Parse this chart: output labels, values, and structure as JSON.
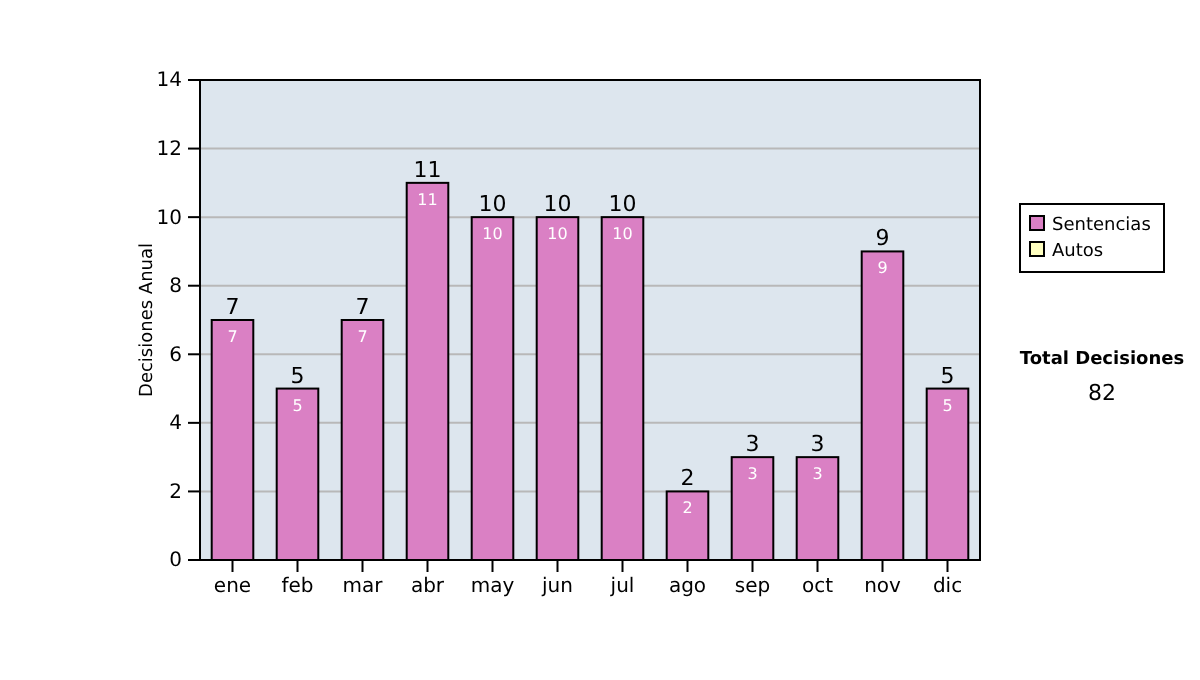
{
  "chart_data": {
    "type": "bar",
    "ylabel": "Decisiones Anual",
    "categories": [
      "ene",
      "feb",
      "mar",
      "abr",
      "may",
      "jun",
      "jul",
      "ago",
      "sep",
      "oct",
      "nov",
      "dic"
    ],
    "series": [
      {
        "name": "Sentencias",
        "color": "#da80c4",
        "values": [
          7,
          5,
          7,
          11,
          10,
          10,
          10,
          2,
          3,
          3,
          9,
          5
        ],
        "value_labels": [
          "7",
          "5",
          "7",
          "11",
          "10",
          "10",
          "10",
          "2",
          "3",
          "3",
          "9",
          "5"
        ]
      },
      {
        "name": "Autos",
        "color": "#ffffc0",
        "values": [
          0,
          0,
          0,
          0,
          0,
          0,
          0,
          0,
          0,
          0,
          0,
          0
        ],
        "value_labels": [
          null,
          null,
          null,
          null,
          null,
          null,
          null,
          null,
          null,
          null,
          null,
          null
        ]
      }
    ],
    "stacked": true,
    "totals": [
      "7",
      "5",
      "7",
      "11",
      "10",
      "10",
      "10",
      "2",
      "3",
      "3",
      "9",
      "5"
    ],
    "ylim": [
      0,
      14
    ],
    "yticks": [
      0,
      2,
      4,
      6,
      8,
      10,
      12,
      14
    ],
    "grid": "y",
    "legend": "right",
    "annotations": [
      "Total Decisiones",
      "82"
    ]
  }
}
